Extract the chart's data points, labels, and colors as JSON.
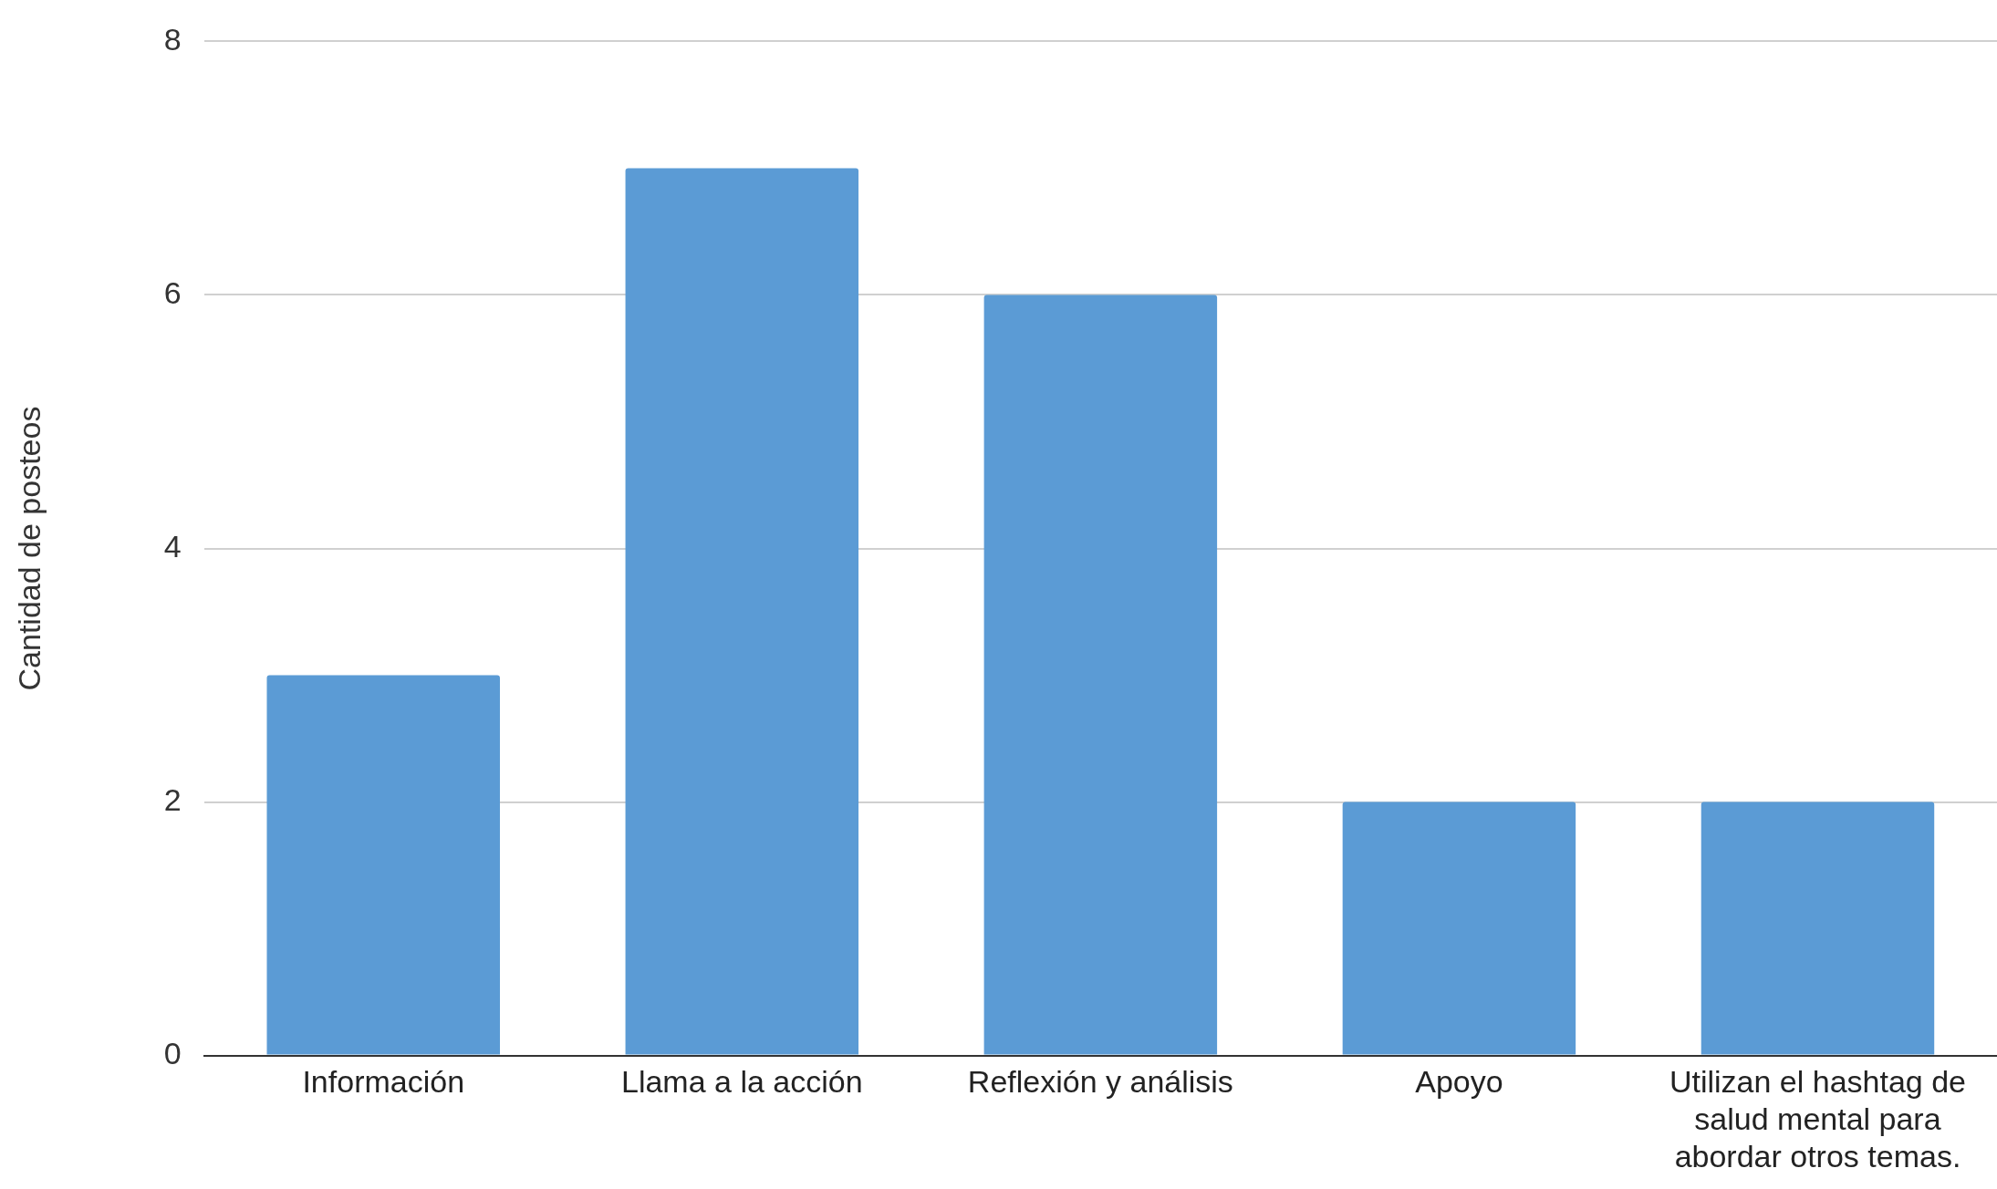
{
  "chart_data": {
    "type": "bar",
    "ylabel": "Cantidad de posteos",
    "categories": [
      "Información",
      "Llama a la acción",
      "Reflexión y análisis",
      "Apoyo",
      "Utilizan el hashtag de salud mental para abordar otros temas."
    ],
    "values": [
      3,
      7,
      6,
      2,
      2
    ],
    "color": "#5b9bd5",
    "ylim": [
      0,
      8
    ],
    "yticks": [
      0,
      2,
      4,
      6,
      8
    ],
    "grid": "y",
    "legend": false
  }
}
